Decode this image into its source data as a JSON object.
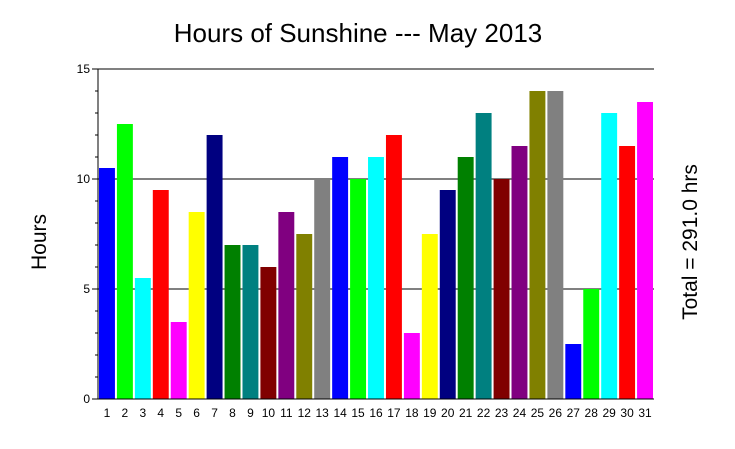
{
  "chart_data": {
    "type": "bar",
    "title": "Hours of Sunshine --- May 2013",
    "xlabel": "",
    "ylabel": "Hours",
    "side_label": "Total = 291.0 hrs",
    "ylim": [
      0,
      15
    ],
    "yticks": [
      0,
      5,
      10,
      15
    ],
    "grid": "horizontal at major ticks",
    "legend": "none",
    "categories": [
      "1",
      "2",
      "3",
      "4",
      "5",
      "6",
      "7",
      "8",
      "9",
      "10",
      "11",
      "12",
      "13",
      "14",
      "15",
      "16",
      "17",
      "18",
      "19",
      "20",
      "21",
      "22",
      "23",
      "24",
      "25",
      "26",
      "27",
      "28",
      "29",
      "30",
      "31"
    ],
    "values": [
      10.5,
      12.5,
      5.5,
      9.5,
      3.5,
      8.5,
      12.0,
      7.0,
      7.0,
      6.0,
      8.5,
      7.5,
      10.0,
      11.0,
      10.0,
      11.0,
      12.0,
      3.0,
      7.5,
      9.5,
      11.0,
      13.0,
      10.0,
      11.5,
      14.0,
      14.0,
      2.5,
      5.0,
      13.0,
      11.5,
      13.5
    ],
    "colors": [
      "#0000ff",
      "#00ff00",
      "#00ffff",
      "#ff0000",
      "#ff00ff",
      "#ffff00",
      "#000080",
      "#008000",
      "#008080",
      "#800000",
      "#800080",
      "#808000",
      "#808080",
      "#0000ff",
      "#00ff00",
      "#00ffff",
      "#ff0000",
      "#ff00ff",
      "#ffff00",
      "#000080",
      "#008000",
      "#008080",
      "#800000",
      "#800080",
      "#808000",
      "#808080",
      "#0000ff",
      "#00ff00",
      "#00ffff",
      "#ff0000",
      "#ff00ff"
    ]
  }
}
